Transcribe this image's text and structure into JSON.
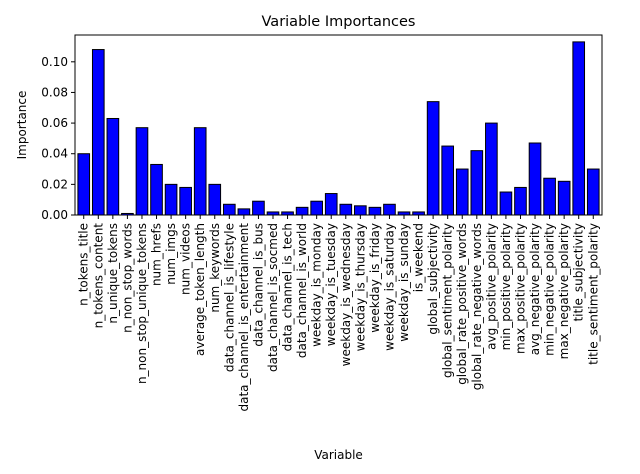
{
  "chart_data": {
    "type": "bar",
    "title": "Variable Importances",
    "xlabel": "Variable",
    "ylabel": "Importance",
    "ylim": [
      0,
      0.1175
    ],
    "yticks": [
      "0.00",
      "0.02",
      "0.04",
      "0.06",
      "0.08",
      "0.10"
    ],
    "bar_color": "#0000ff",
    "edge_color": "#000000",
    "grid": false,
    "categories": [
      "n_tokens_title",
      "n_tokens_content",
      "n_unique_tokens",
      "n_non_stop_words",
      "n_non_stop_unique_tokens",
      "num_hrefs",
      "num_imgs",
      "num_videos",
      "average_token_length",
      "num_keywords",
      "data_channel_is_lifestyle",
      "data_channel_is_entertainment",
      "data_channel_is_bus",
      "data_channel_is_socmed",
      "data_channel_is_tech",
      "data_channel_is_world",
      "weekday_is_monday",
      "weekday_is_tuesday",
      "weekday_is_wednesday",
      "weekday_is_thursday",
      "weekday_is_friday",
      "weekday_is_saturday",
      "weekday_is_sunday",
      "is_weekend",
      "global_subjectivity",
      "global_sentiment_polarity",
      "global_rate_positive_words",
      "global_rate_negative_words",
      "avg_positive_polarity",
      "min_positive_polarity",
      "max_positive_polarity",
      "avg_negative_polarity",
      "min_negative_polarity",
      "max_negative_polarity",
      "title_subjectivity",
      "title_sentiment_polarity"
    ],
    "values": [
      0.04,
      0.108,
      0.063,
      0.001,
      0.057,
      0.033,
      0.02,
      0.018,
      0.057,
      0.02,
      0.007,
      0.004,
      0.009,
      0.002,
      0.002,
      0.005,
      0.009,
      0.014,
      0.007,
      0.006,
      0.005,
      0.007,
      0.002,
      0.002,
      0.074,
      0.045,
      0.03,
      0.042,
      0.06,
      0.015,
      0.018,
      0.047,
      0.024,
      0.022,
      0.113,
      0.03
    ]
  }
}
